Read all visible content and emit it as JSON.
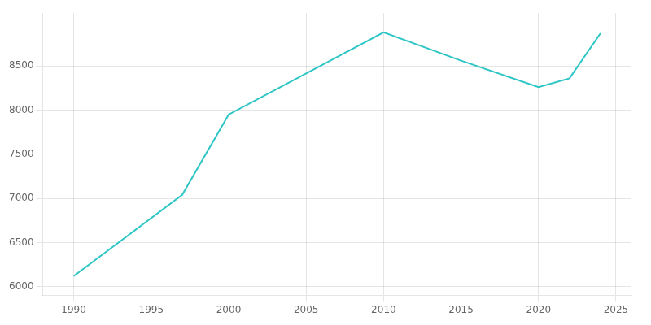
{
  "chart_data": {
    "type": "line",
    "x": [
      1990,
      1997,
      2000,
      2010,
      2015,
      2020,
      2022,
      2024
    ],
    "values": [
      6120,
      7040,
      7950,
      8880,
      8560,
      8260,
      8360,
      8870
    ],
    "color": "#2DC5C5",
    "xlim": [
      1988,
      2026
    ],
    "ylim": [
      5900,
      9100
    ],
    "xticks": [
      1990,
      1995,
      2000,
      2005,
      2010,
      2015,
      2020,
      2025
    ],
    "yticks": [
      6000,
      6500,
      7000,
      7500,
      8000,
      8500
    ],
    "grid": true
  }
}
